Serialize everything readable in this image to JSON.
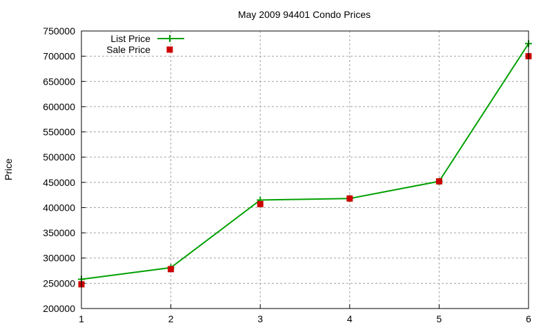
{
  "chart_data": {
    "type": "line",
    "title": "May 2009 94401 Condo Prices",
    "xlabel": "",
    "ylabel": "Price",
    "x": [
      1,
      2,
      3,
      4,
      5,
      6
    ],
    "xlim": [
      1,
      6
    ],
    "ylim": [
      200000,
      750000
    ],
    "xticks": [
      "1",
      "2",
      "3",
      "4",
      "5",
      "6"
    ],
    "yticks": [
      "200000",
      "250000",
      "300000",
      "350000",
      "400000",
      "450000",
      "500000",
      "550000",
      "600000",
      "650000",
      "700000",
      "750000"
    ],
    "grid": true,
    "legend_position": "top-left",
    "series": [
      {
        "name": "List Price",
        "style": "linespoints",
        "marker": "plus",
        "color": "#00a000",
        "values": [
          258000,
          281000,
          415000,
          418000,
          452000,
          725000
        ]
      },
      {
        "name": "Sale Price",
        "style": "points",
        "marker": "square",
        "color": "#cc0000",
        "values": [
          248000,
          278000,
          407000,
          418000,
          452000,
          700000
        ]
      }
    ]
  }
}
